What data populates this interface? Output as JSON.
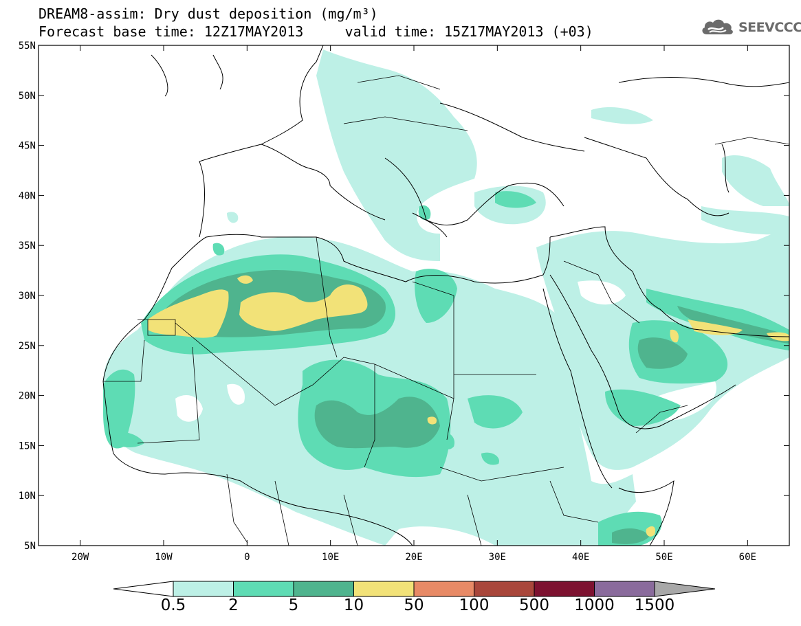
{
  "header": {
    "title": "DREAM8-assim: Dry dust deposition (mg/m³)",
    "base_time_label": "Forecast base time: 12Z17MAY2013",
    "valid_time_label": "valid time: 15Z17MAY2013 (+03)"
  },
  "logo": {
    "text": "SEEVCCC",
    "icon": "cloud-logo-icon",
    "color": "#6b6b6b"
  },
  "map": {
    "lat_ticks": [
      "55N",
      "50N",
      "45N",
      "40N",
      "35N",
      "30N",
      "25N",
      "20N",
      "15N",
      "10N",
      "5N"
    ],
    "lon_ticks": [
      "20W",
      "10W",
      "0",
      "10E",
      "20E",
      "30E",
      "40E",
      "50E",
      "60E"
    ],
    "extent": {
      "lon": [
        -25,
        65
      ],
      "lat": [
        5,
        55
      ]
    }
  },
  "colorbar": {
    "labels": [
      "0.5",
      "2",
      "5",
      "10",
      "50",
      "100",
      "500",
      "1000",
      "1500"
    ],
    "colors": [
      "#ffffff",
      "#bdf0e6",
      "#5edcb4",
      "#4fb48e",
      "#f2e278",
      "#e88a66",
      "#a9473b",
      "#7d1230",
      "#8a6b9c",
      "#a8a8a8"
    ]
  },
  "chart_data": {
    "type": "heatmap",
    "title": "DREAM8-assim: Dry dust deposition (mg/m³)",
    "legend_thresholds": [
      0.5,
      2,
      5,
      10,
      50,
      100,
      500,
      1000,
      1500
    ],
    "xlim": [
      -25,
      65
    ],
    "ylim": [
      5,
      55
    ]
  }
}
